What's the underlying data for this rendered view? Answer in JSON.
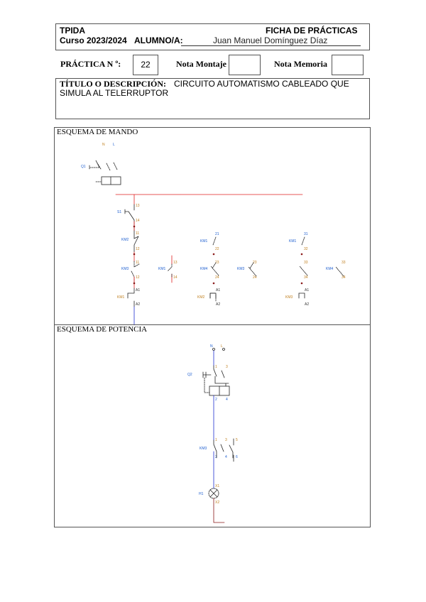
{
  "header": {
    "subject": "TPIDA",
    "form_title": "FICHA DE PRÁCTICAS",
    "course": "Curso 2023/2024",
    "student_label": "ALUMNO/A:",
    "student_name": "Juan Manuel Domínguez Díaz"
  },
  "grades": {
    "practice_label": "PRÁCTICA N º:",
    "practice_number": "22",
    "assembly_label": "Nota Montaje",
    "assembly_value": "",
    "report_label": "Nota Memoria",
    "report_value": ""
  },
  "description": {
    "label": "TÍTULO O DESCRIPCIÓN:",
    "text_line1": "CIRCUITO AUTOMATISMO CABLEADO QUE",
    "text_line2": "SIMULA AL TELERRUPTOR"
  },
  "control_schematic": {
    "title": "ESQUEMA DE MANDO",
    "labels": {
      "n": "N",
      "l": "L",
      "q1": "Q1",
      "s1": "S1",
      "km_a": "KM2",
      "km_b": "KM3",
      "km_c": "KM1",
      "km_d": "KM1",
      "km_e": "KM4",
      "km_f": "KM3",
      "km_g": "KM1",
      "km_h": "KM4",
      "coil1": "KM1",
      "coil2": "KM2",
      "coil3": "KM3",
      "t13": "13",
      "t14": "14",
      "t11": "11",
      "t12": "12",
      "t21": "21",
      "t22": "22",
      "t31": "31",
      "t32": "32",
      "t33": "33",
      "t34": "34",
      "t23": "23",
      "t24": "24",
      "a1": "A1",
      "a2": "A2"
    }
  },
  "power_schematic": {
    "title": "ESQUEMA DE POTENCIA",
    "labels": {
      "n": "N",
      "l": "L",
      "q2": "Q2",
      "km": "KM3",
      "h1": "H1",
      "x1": "X1",
      "x2": "X2",
      "t1": "1",
      "t2": "2",
      "t3": "3",
      "t4": "4",
      "t5": "5",
      "t6": "6"
    }
  },
  "colors": {
    "phase": "#e02020",
    "neutral": "#2030d0",
    "ground": "#8b1a1a"
  }
}
